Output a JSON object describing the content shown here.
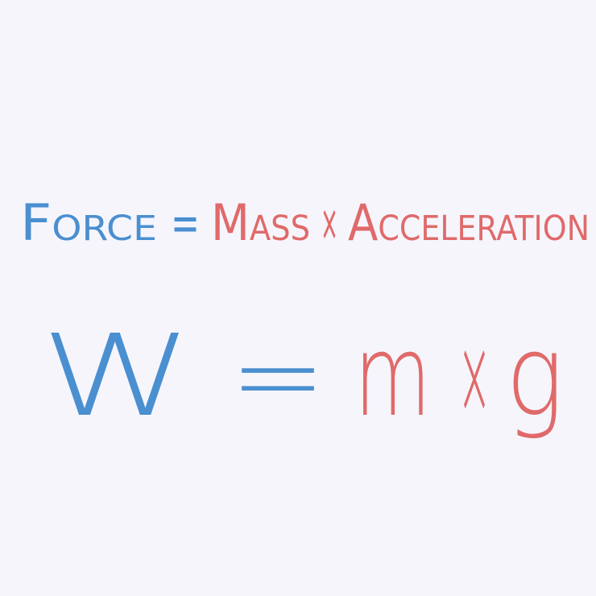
{
  "equations": [
    {
      "terms": [
        {
          "text": "Force",
          "color": "#4a8fd0"
        },
        {
          "text": "=",
          "color": "#4a8fd0"
        },
        {
          "text": "Mass",
          "color": "#e06a6a"
        },
        {
          "text": "×",
          "color": "#e06a6a"
        },
        {
          "text": "Acceleration",
          "color": "#e06a6a"
        }
      ]
    },
    {
      "terms": [
        {
          "text": "W",
          "color": "#4a8fd0"
        },
        {
          "text": "=",
          "color": "#4a8fd0"
        },
        {
          "text": "m",
          "color": "#e06a6a"
        },
        {
          "text": "×",
          "color": "#e06a6a"
        },
        {
          "text": "g",
          "color": "#e06a6a"
        }
      ]
    }
  ]
}
